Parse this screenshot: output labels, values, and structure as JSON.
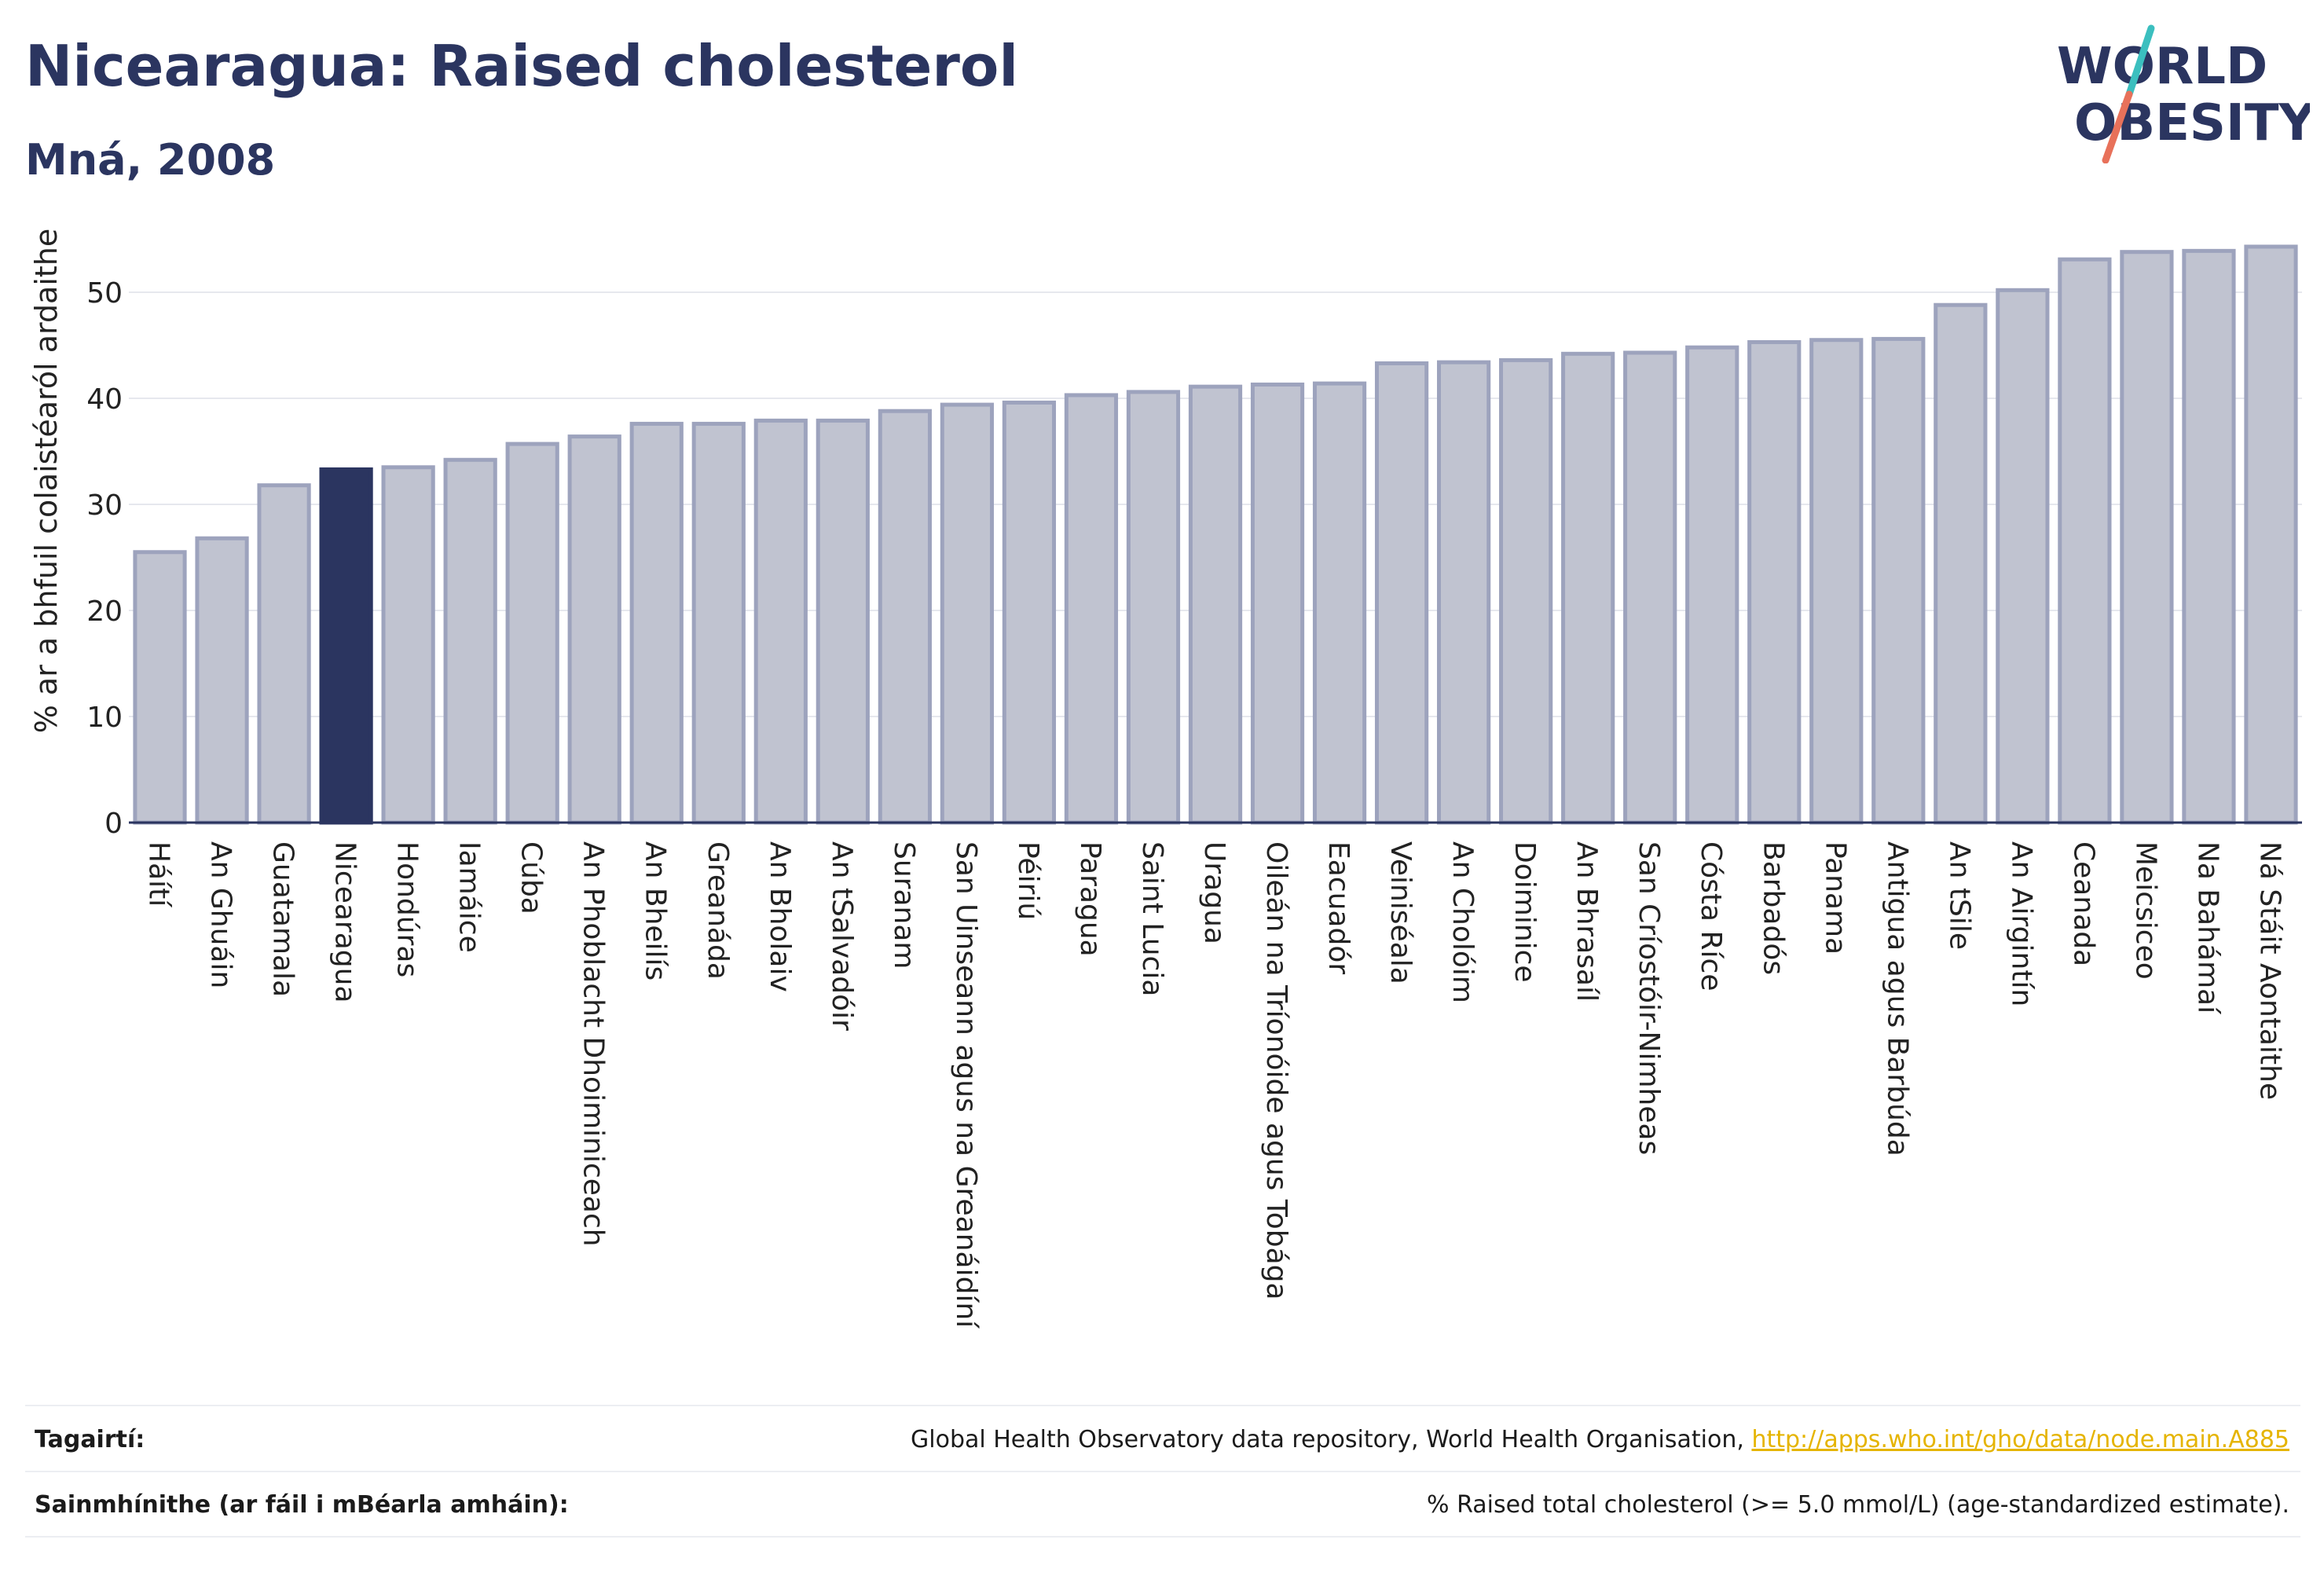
{
  "header": {
    "title": "Nicearagua: Raised cholesterol",
    "subtitle": "Mná, 2008"
  },
  "logo": {
    "line1": "WORLD",
    "line2": "OBESITY",
    "colors": {
      "text": "#2b3560",
      "slash_top": "#3bbfbf",
      "slash_bottom": "#e8715a"
    }
  },
  "chart_data": {
    "type": "bar",
    "ylabel": "% ar a bhfuil colaistéaról ardaithe",
    "ylim": [
      0,
      55
    ],
    "yticks": [
      0,
      10,
      20,
      30,
      40,
      50
    ],
    "grid": true,
    "highlight": "Nicearagua",
    "colors": {
      "bar": "#c0c3d0",
      "bar_stroke": "#9da3bd",
      "highlight": "#2b3560",
      "grid": "#e6e8ee",
      "axis": "#2b3560"
    },
    "categories": [
      "Háítí",
      "An Ghuáin",
      "Guatamala",
      "Nicearagua",
      "Hondúras",
      "Iamáice",
      "Cúba",
      "An Phoblacht Dhoiminiceach",
      "An Bheilís",
      "Greanáda",
      "An Bholaiv",
      "An tSalvadóir",
      "Suranam",
      "San Uinseann agus na Greanáidíní",
      "Péiriú",
      "Paragua",
      "Saint Lucia",
      "Uragua",
      "Oileán na Tríonóide agus Tobága",
      "Eacuadór",
      "Veiniséala",
      "An Cholóim",
      "Doiminice",
      "An Bhrasaíl",
      "San Críostóir-Nimheas",
      "Cósta Ríce",
      "Barbadós",
      "Panama",
      "Antigua agus Barbúda",
      "An tSile",
      "An Airgintín",
      "Ceanada",
      "Meicsiceo",
      "Na Bahámaí",
      "Ná Stáit Aontaithe"
    ],
    "values": [
      25.5,
      26.8,
      31.8,
      33.3,
      33.5,
      34.2,
      35.7,
      36.4,
      37.6,
      37.6,
      37.9,
      37.9,
      38.8,
      39.4,
      39.6,
      40.3,
      40.6,
      41.1,
      41.3,
      41.4,
      43.3,
      43.4,
      43.6,
      44.2,
      44.3,
      44.8,
      45.3,
      45.5,
      45.6,
      48.8,
      50.2,
      53.1,
      53.8,
      53.9,
      54.3
    ]
  },
  "footer": {
    "refs_label": "Tagairtí:",
    "refs_text": "Global Health Observatory data repository, World Health Organisation, ",
    "refs_link": "http://apps.who.int/gho/data/node.main.A885",
    "defs_label": "Sainmhínithe (ar fáil i mBéarla amháin):",
    "defs_text": "% Raised total cholesterol (>= 5.0 mmol/L) (age-standardized estimate)."
  }
}
